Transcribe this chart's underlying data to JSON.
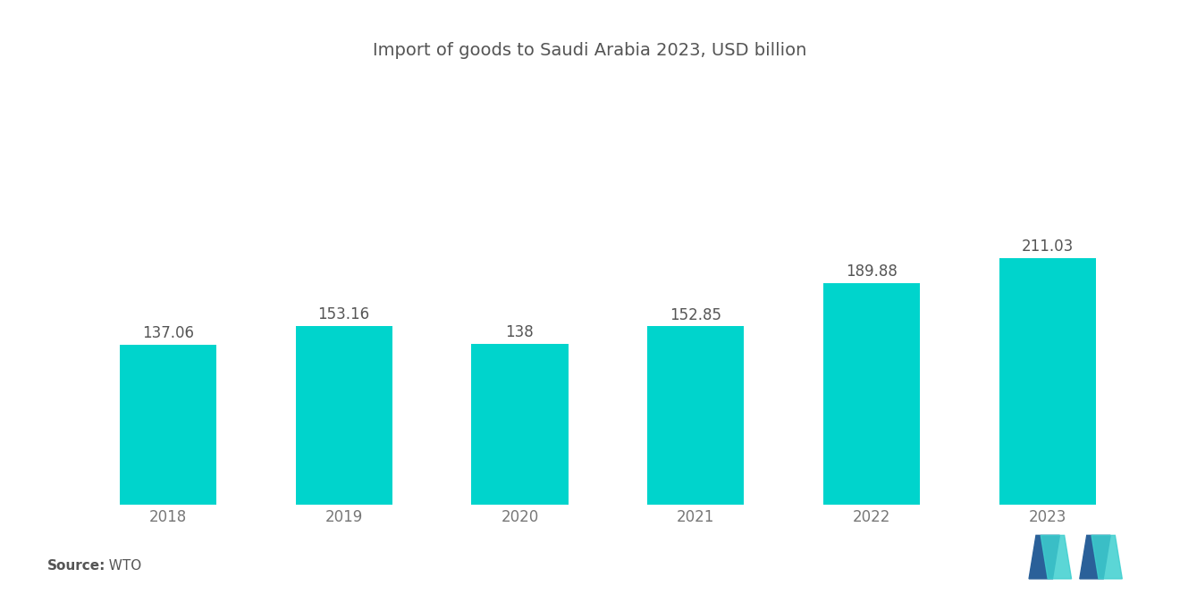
{
  "title": "Import of goods to Saudi Arabia 2023, USD billion",
  "categories": [
    "2018",
    "2019",
    "2020",
    "2021",
    "2022",
    "2023"
  ],
  "values": [
    137.06,
    153.16,
    138,
    152.85,
    189.88,
    211.03
  ],
  "bar_color": "#00D4CC",
  "background_color": "#ffffff",
  "title_fontsize": 14,
  "label_fontsize": 12,
  "value_fontsize": 12,
  "source_label": "Source:",
  "source_value": "  WTO",
  "ylim": [
    0,
    290
  ],
  "bar_width": 0.55
}
